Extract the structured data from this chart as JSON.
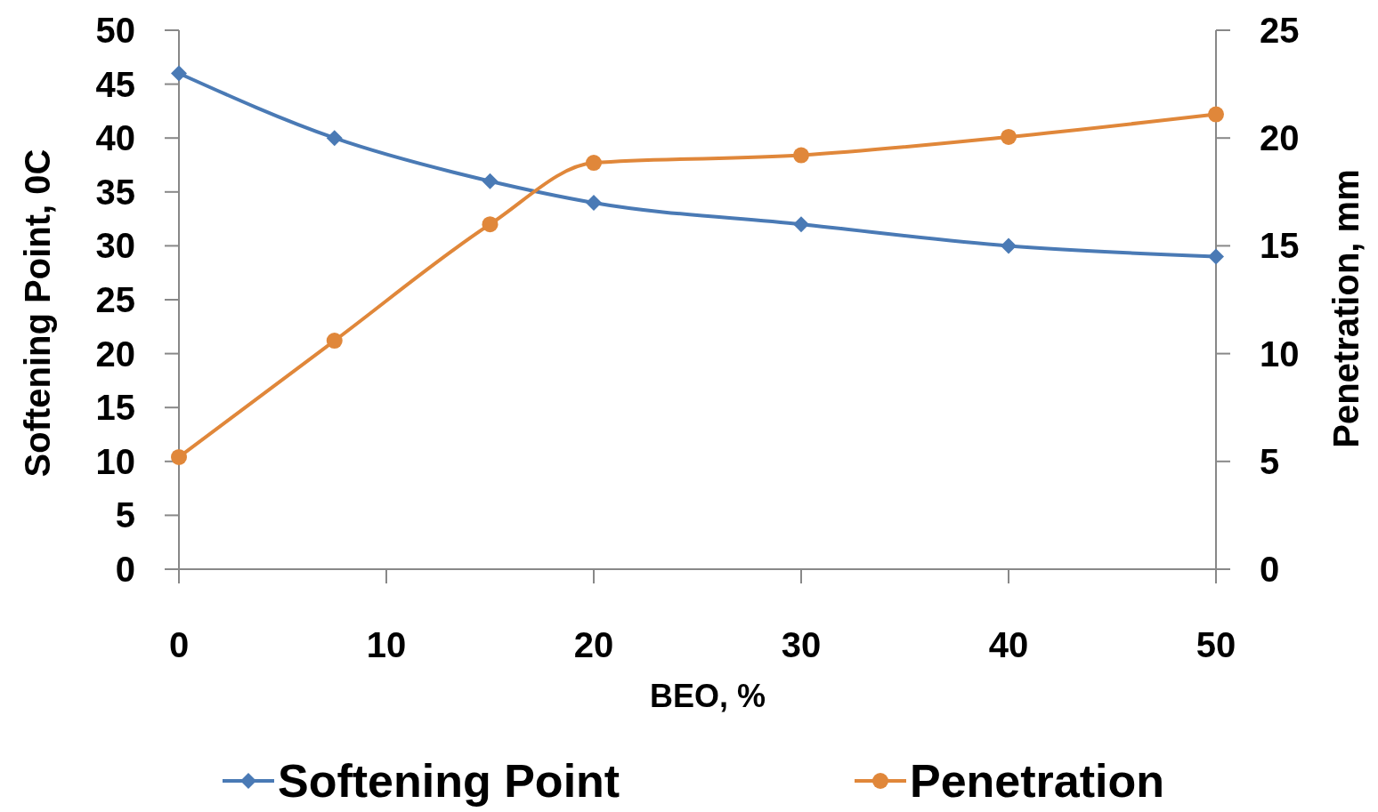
{
  "chart_data": {
    "type": "line",
    "xlabel": "BEO, %",
    "ylabel": "Softening Point, 0C",
    "y2label": "Penetration, mm",
    "xlim": [
      0,
      50
    ],
    "xticks": [
      0,
      10,
      20,
      30,
      40,
      50
    ],
    "ylim": [
      0,
      50
    ],
    "yticks": [
      0,
      5,
      10,
      15,
      20,
      25,
      30,
      35,
      40,
      45,
      50
    ],
    "y2lim": [
      0,
      25
    ],
    "y2ticks": [
      0,
      5,
      10,
      15,
      20,
      25
    ],
    "grid": false,
    "legend": "bottom",
    "line_style": "solid",
    "series": [
      {
        "name": "Softening Point",
        "color": "#4a7ab5",
        "marker": "diamond",
        "x": [
          0,
          7.5,
          15,
          20,
          30,
          40,
          50
        ],
        "values": [
          46,
          40,
          36,
          34,
          32,
          30,
          29
        ]
      },
      {
        "name": "Penetration",
        "color": "#e0873a",
        "marker": "circle",
        "axis": "y2",
        "x": [
          0,
          7.5,
          15,
          20,
          30,
          40,
          50
        ],
        "values": [
          5.2,
          10.6,
          16,
          18.85,
          19.2,
          20.05,
          21.1
        ]
      }
    ]
  }
}
